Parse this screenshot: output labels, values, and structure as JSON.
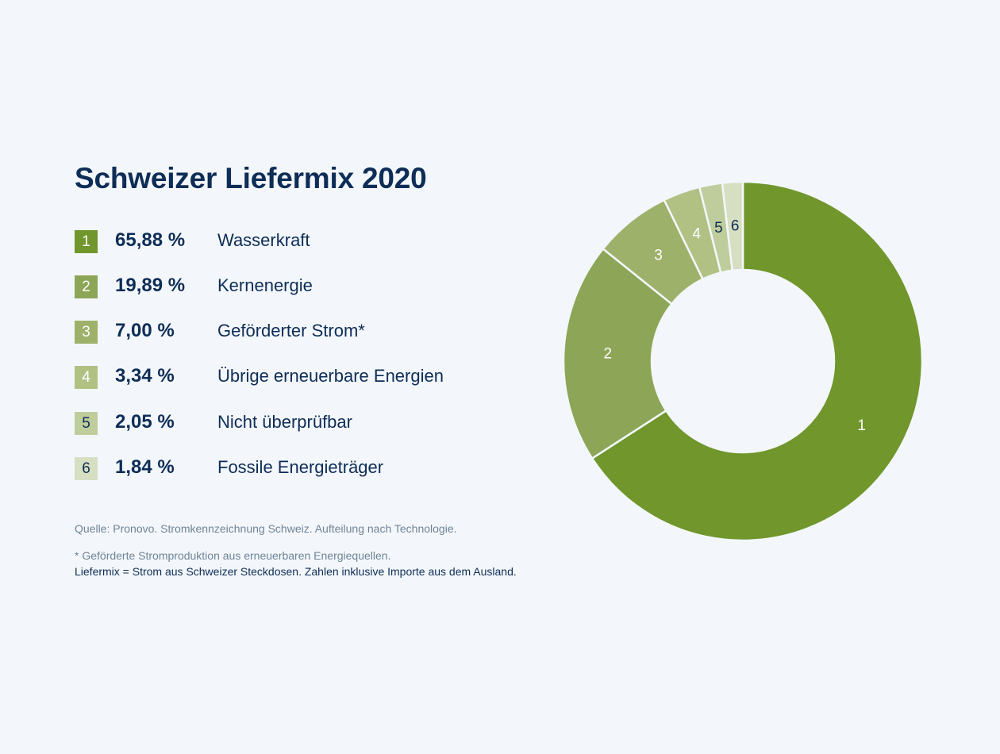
{
  "title": "Schweizer Liefermix 2020",
  "legend": [
    {
      "number": "1",
      "percent": "65,88 %",
      "label": "Wasserkraft",
      "color": "#70962c",
      "text_color": "#ffffff"
    },
    {
      "number": "2",
      "percent": "19,89 %",
      "label": "Kernenergie",
      "color": "#8ca556",
      "text_color": "#ffffff"
    },
    {
      "number": "3",
      "percent": "7,00 %",
      "label": "Geförderter Strom*",
      "color": "#9eb16a",
      "text_color": "#ffffff"
    },
    {
      "number": "4",
      "percent": "3,34 %",
      "label": "Übrige erneuerbare Energien",
      "color": "#b0c183",
      "text_color": "#ffffff"
    },
    {
      "number": "5",
      "percent": "2,05 %",
      "label": "Nicht überprüfbar",
      "color": "#bfcd9c",
      "text_color": "#0e2d57"
    },
    {
      "number": "6",
      "percent": "1,84 %",
      "label": "Fossile Energieträger",
      "color": "#d6dfc1",
      "text_color": "#0e2d57"
    }
  ],
  "notes": {
    "source": "Quelle: Pronovo. Stromkennzeichnung Schweiz. Aufteilung nach Technologie.",
    "footnote": "* Geförderte Stromproduktion aus erneuerbaren Energiequellen.",
    "definition": "Liefermix = Strom aus Schweizer Steckdosen. Zahlen inklusive Importe aus dem Ausland."
  },
  "chart_data": {
    "type": "pie",
    "title": "Schweizer Liefermix 2020",
    "categories": [
      "Wasserkraft",
      "Kernenergie",
      "Geförderter Strom*",
      "Übrige erneuerbare Energien",
      "Nicht überprüfbar",
      "Fossile Energieträger"
    ],
    "slice_labels": [
      "1",
      "2",
      "3",
      "4",
      "5",
      "6"
    ],
    "values": [
      65.88,
      19.89,
      7.0,
      3.34,
      2.05,
      1.84
    ],
    "colors": [
      "#70962c",
      "#8ca556",
      "#9eb16a",
      "#b0c183",
      "#bfcd9c",
      "#d6dfc1"
    ],
    "label_colors": [
      "#ffffff",
      "#ffffff",
      "#ffffff",
      "#ffffff",
      "#0e2d57",
      "#0e2d57"
    ],
    "unit": "%",
    "donut": true,
    "legend": "left"
  }
}
